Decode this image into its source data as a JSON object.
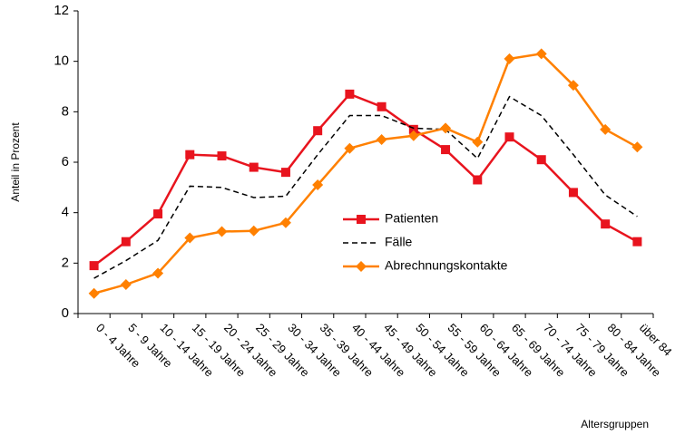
{
  "chart_data": {
    "type": "line",
    "y_label": "Anteil in Prozent",
    "x_label": "Altersgruppen",
    "categories": [
      "0 - 4 Jahre",
      "5 - 9 Jahre",
      "10 - 14 Jahre",
      "15 - 19 Jahre",
      "20 - 24 Jahre",
      "25 - 29 Jahre",
      "30 - 34 Jahre",
      "35 - 39 Jahre",
      "40 - 44 Jahre",
      "45 - 49 Jahre",
      "50 - 54 Jahre",
      "55 - 59 Jahre",
      "60 - 64 Jahre",
      "65 - 69 Jahre",
      "70 - 74 Jahre",
      "75 - 79 Jahre",
      "80 - 84 Jahre",
      "über 84"
    ],
    "series": [
      {
        "name": "Patienten",
        "color": "#e8141e",
        "marker": "square",
        "dash": false,
        "values": [
          1.9,
          2.85,
          3.95,
          6.3,
          6.25,
          5.8,
          5.6,
          7.25,
          8.7,
          8.2,
          7.3,
          6.5,
          5.3,
          7.0,
          6.1,
          4.8,
          3.55,
          2.85
        ]
      },
      {
        "name": "Fälle",
        "color": "#000000",
        "marker": "none",
        "dash": true,
        "values": [
          1.4,
          2.1,
          2.9,
          5.05,
          5.0,
          4.6,
          4.65,
          6.3,
          7.85,
          7.85,
          7.35,
          7.3,
          6.15,
          8.6,
          7.85,
          6.3,
          4.7,
          3.85
        ]
      },
      {
        "name": "Abrechnungskontakte",
        "color": "#ff8000",
        "marker": "diamond",
        "dash": false,
        "values": [
          0.8,
          1.15,
          1.6,
          3.0,
          3.25,
          3.28,
          3.6,
          5.1,
          6.55,
          6.9,
          7.05,
          7.35,
          6.8,
          10.1,
          10.3,
          9.05,
          7.3,
          6.6
        ]
      }
    ],
    "ylim": [
      0,
      12
    ],
    "yticks": [
      0,
      2,
      4,
      6,
      8,
      10,
      12
    ],
    "grid": false,
    "legend_position": "center"
  }
}
